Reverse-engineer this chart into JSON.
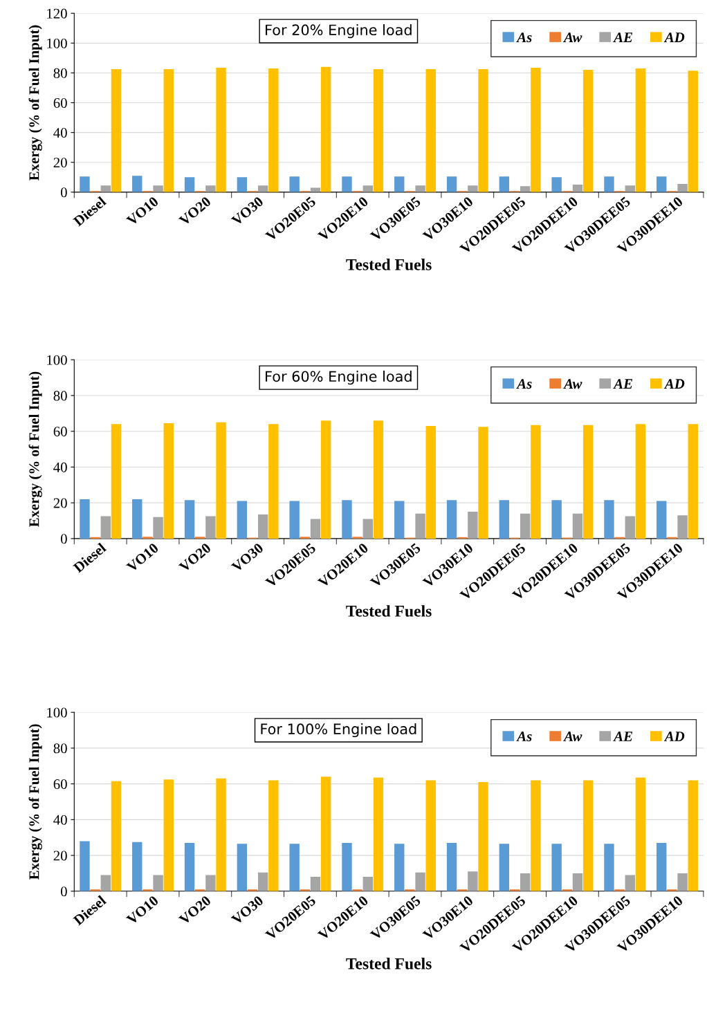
{
  "chart_data": [
    {
      "type": "bar",
      "title": "For 20% Engine load",
      "xlabel": "Tested Fuels",
      "ylabel": "Exergy (% of Fuel Input)",
      "categories": [
        "Diesel",
        "VO10",
        "VO20",
        "VO30",
        "VO20E05",
        "VO20E10",
        "VO30E05",
        "VO30E10",
        "VO20DEE05",
        "VO20DEE10",
        "VO30DEE05",
        "VO30DEE10"
      ],
      "ylim": [
        0,
        120
      ],
      "yticks": [
        0,
        20,
        40,
        60,
        80,
        100,
        120
      ],
      "grid": "y",
      "legend": "top right",
      "series": [
        {
          "name": "As",
          "color": "#5b9bd5",
          "values": [
            10.5,
            11,
            10,
            10,
            10.5,
            10.5,
            10.5,
            10.5,
            10.5,
            10,
            10.5,
            10.5
          ]
        },
        {
          "name": "Aw",
          "color": "#ed7d31",
          "values": [
            0.8,
            0.8,
            0.8,
            0.8,
            0.8,
            0.8,
            0.8,
            0.8,
            0.8,
            0.8,
            0.8,
            0.8
          ]
        },
        {
          "name": "AE",
          "color": "#a5a5a5",
          "values": [
            4.5,
            4.5,
            4.5,
            4.5,
            3,
            4.5,
            4.5,
            4.5,
            4,
            5,
            4.5,
            5.5
          ]
        },
        {
          "name": "AD",
          "color": "#ffc000",
          "values": [
            82.5,
            82.5,
            83.5,
            83,
            84,
            82.5,
            82.5,
            82.5,
            83.5,
            82,
            83,
            81.5
          ]
        }
      ]
    },
    {
      "type": "bar",
      "title": "For 60% Engine load",
      "xlabel": "Tested Fuels",
      "ylabel": "Exergy (% of Fuel Input)",
      "categories": [
        "Diesel",
        "VO10",
        "VO20",
        "VO30",
        "VO20E05",
        "VO20E10",
        "VO30E05",
        "VO30E10",
        "VO20DEE05",
        "VO20DEE10",
        "VO30DEE05",
        "VO30DEE10"
      ],
      "ylim": [
        0,
        100
      ],
      "yticks": [
        0,
        20,
        40,
        60,
        80,
        100
      ],
      "grid": "y",
      "legend": "top right",
      "series": [
        {
          "name": "As",
          "color": "#5b9bd5",
          "values": [
            22,
            22,
            21.5,
            21,
            21,
            21.5,
            21,
            21.5,
            21.5,
            21.5,
            21.5,
            21
          ]
        },
        {
          "name": "Aw",
          "color": "#ed7d31",
          "values": [
            0.8,
            1,
            1,
            0.5,
            1,
            1,
            0.5,
            0.8,
            0.5,
            0.5,
            0.8,
            0.8
          ]
        },
        {
          "name": "AE",
          "color": "#a5a5a5",
          "values": [
            12.5,
            12,
            12.5,
            13.5,
            11,
            11,
            14,
            15,
            14,
            14,
            12.5,
            13
          ]
        },
        {
          "name": "AD",
          "color": "#ffc000",
          "values": [
            64,
            64.5,
            65,
            64,
            66,
            66,
            63,
            62.5,
            63.5,
            63.5,
            64,
            64
          ]
        }
      ]
    },
    {
      "type": "bar",
      "title": "For 100% Engine load",
      "xlabel": "Tested Fuels",
      "ylabel": "Exergy (% of Fuel Input)",
      "categories": [
        "Diesel",
        "VO10",
        "VO20",
        "VO30",
        "VO20E05",
        "VO20E10",
        "VO30E05",
        "VO30E10",
        "VO20DEE05",
        "VO20DEE10",
        "VO30DEE05",
        "VO30DEE10"
      ],
      "ylim": [
        0,
        100
      ],
      "yticks": [
        0,
        20,
        40,
        60,
        80,
        100
      ],
      "grid": "y",
      "legend": "top right",
      "series": [
        {
          "name": "As",
          "color": "#5b9bd5",
          "values": [
            28,
            27.5,
            27,
            26.5,
            26.5,
            27,
            26.5,
            27,
            26.5,
            26.5,
            26.5,
            27
          ]
        },
        {
          "name": "Aw",
          "color": "#ed7d31",
          "values": [
            1,
            1,
            1,
            1,
            1,
            1,
            1,
            1,
            1,
            1,
            1,
            1
          ]
        },
        {
          "name": "AE",
          "color": "#a5a5a5",
          "values": [
            9,
            9,
            9,
            10.5,
            8,
            8,
            10.5,
            11,
            10,
            10,
            9,
            10
          ]
        },
        {
          "name": "AD",
          "color": "#ffc000",
          "values": [
            61.5,
            62.5,
            63,
            62,
            64,
            63.5,
            62,
            61,
            62,
            62,
            63.5,
            62
          ]
        }
      ]
    }
  ]
}
